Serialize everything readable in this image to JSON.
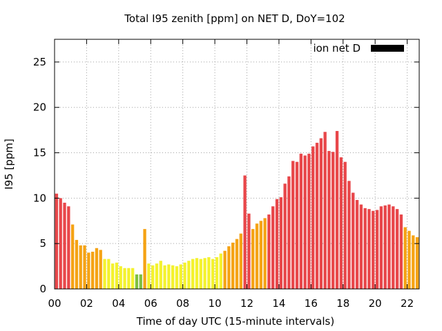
{
  "chart_data": {
    "type": "bar",
    "title": "Total I95 zenith [ppm] on NET D, DoY=102",
    "xlabel": "Time of day UTC (15-minute intervals)",
    "ylabel": "I95 [ppm]",
    "xlim": [
      0,
      22.75
    ],
    "ylim": [
      0,
      27.5
    ],
    "x_ticks": [
      {
        "value": 0,
        "label": "00"
      },
      {
        "value": 2,
        "label": "02"
      },
      {
        "value": 4,
        "label": "04"
      },
      {
        "value": 6,
        "label": "06"
      },
      {
        "value": 8,
        "label": "08"
      },
      {
        "value": 10,
        "label": "10"
      },
      {
        "value": 12,
        "label": "12"
      },
      {
        "value": 14,
        "label": "14"
      },
      {
        "value": 16,
        "label": "16"
      },
      {
        "value": 18,
        "label": "18"
      },
      {
        "value": 20,
        "label": "20"
      },
      {
        "value": 22,
        "label": "22"
      }
    ],
    "y_ticks": [
      {
        "value": 0,
        "label": "0"
      },
      {
        "value": 5,
        "label": "5"
      },
      {
        "value": 10,
        "label": "10"
      },
      {
        "value": 15,
        "label": "15"
      },
      {
        "value": 20,
        "label": "20"
      },
      {
        "value": 25,
        "label": "25"
      }
    ],
    "grid": true,
    "legend": {
      "label": "ion net D",
      "color": "#000000",
      "position": "top-right"
    },
    "interval_hours": 0.25,
    "x_start": 0,
    "colors": {
      "red": "#e8474a",
      "orange": "#f5a315",
      "yellow": "#f4f22f",
      "green": "#7fbf3f"
    },
    "bars": [
      {
        "value": 10.5,
        "color": "red"
      },
      {
        "value": 10.0,
        "color": "red"
      },
      {
        "value": 9.5,
        "color": "red"
      },
      {
        "value": 9.1,
        "color": "red"
      },
      {
        "value": 7.1,
        "color": "orange"
      },
      {
        "value": 5.4,
        "color": "orange"
      },
      {
        "value": 4.8,
        "color": "orange"
      },
      {
        "value": 4.8,
        "color": "orange"
      },
      {
        "value": 4.0,
        "color": "orange"
      },
      {
        "value": 4.1,
        "color": "orange"
      },
      {
        "value": 4.5,
        "color": "orange"
      },
      {
        "value": 4.3,
        "color": "orange"
      },
      {
        "value": 3.3,
        "color": "yellow"
      },
      {
        "value": 3.3,
        "color": "yellow"
      },
      {
        "value": 2.8,
        "color": "yellow"
      },
      {
        "value": 2.9,
        "color": "yellow"
      },
      {
        "value": 2.5,
        "color": "yellow"
      },
      {
        "value": 2.3,
        "color": "yellow"
      },
      {
        "value": 2.3,
        "color": "yellow"
      },
      {
        "value": 2.3,
        "color": "yellow"
      },
      {
        "value": 1.6,
        "color": "green"
      },
      {
        "value": 1.6,
        "color": "green"
      },
      {
        "value": 6.6,
        "color": "orange"
      },
      {
        "value": 2.8,
        "color": "yellow"
      },
      {
        "value": 2.6,
        "color": "yellow"
      },
      {
        "value": 2.8,
        "color": "yellow"
      },
      {
        "value": 3.1,
        "color": "yellow"
      },
      {
        "value": 2.6,
        "color": "yellow"
      },
      {
        "value": 2.7,
        "color": "yellow"
      },
      {
        "value": 2.6,
        "color": "yellow"
      },
      {
        "value": 2.5,
        "color": "yellow"
      },
      {
        "value": 2.7,
        "color": "yellow"
      },
      {
        "value": 2.9,
        "color": "yellow"
      },
      {
        "value": 3.1,
        "color": "yellow"
      },
      {
        "value": 3.3,
        "color": "yellow"
      },
      {
        "value": 3.4,
        "color": "yellow"
      },
      {
        "value": 3.3,
        "color": "yellow"
      },
      {
        "value": 3.4,
        "color": "yellow"
      },
      {
        "value": 3.5,
        "color": "yellow"
      },
      {
        "value": 3.3,
        "color": "yellow"
      },
      {
        "value": 3.5,
        "color": "yellow"
      },
      {
        "value": 3.9,
        "color": "yellow"
      },
      {
        "value": 4.2,
        "color": "orange"
      },
      {
        "value": 4.7,
        "color": "orange"
      },
      {
        "value": 5.1,
        "color": "orange"
      },
      {
        "value": 5.5,
        "color": "orange"
      },
      {
        "value": 6.1,
        "color": "orange"
      },
      {
        "value": 12.5,
        "color": "red"
      },
      {
        "value": 8.3,
        "color": "red"
      },
      {
        "value": 6.6,
        "color": "orange"
      },
      {
        "value": 7.2,
        "color": "orange"
      },
      {
        "value": 7.5,
        "color": "orange"
      },
      {
        "value": 7.8,
        "color": "orange"
      },
      {
        "value": 8.2,
        "color": "red"
      },
      {
        "value": 9.1,
        "color": "red"
      },
      {
        "value": 9.9,
        "color": "red"
      },
      {
        "value": 10.1,
        "color": "red"
      },
      {
        "value": 11.6,
        "color": "red"
      },
      {
        "value": 12.4,
        "color": "red"
      },
      {
        "value": 14.1,
        "color": "red"
      },
      {
        "value": 14.0,
        "color": "red"
      },
      {
        "value": 14.9,
        "color": "red"
      },
      {
        "value": 14.7,
        "color": "red"
      },
      {
        "value": 14.9,
        "color": "red"
      },
      {
        "value": 15.7,
        "color": "red"
      },
      {
        "value": 16.1,
        "color": "red"
      },
      {
        "value": 16.6,
        "color": "red"
      },
      {
        "value": 17.3,
        "color": "red"
      },
      {
        "value": 15.2,
        "color": "red"
      },
      {
        "value": 15.1,
        "color": "red"
      },
      {
        "value": 17.4,
        "color": "red"
      },
      {
        "value": 14.5,
        "color": "red"
      },
      {
        "value": 14.0,
        "color": "red"
      },
      {
        "value": 11.9,
        "color": "red"
      },
      {
        "value": 10.6,
        "color": "red"
      },
      {
        "value": 9.8,
        "color": "red"
      },
      {
        "value": 9.3,
        "color": "red"
      },
      {
        "value": 8.9,
        "color": "red"
      },
      {
        "value": 8.8,
        "color": "red"
      },
      {
        "value": 8.6,
        "color": "red"
      },
      {
        "value": 8.7,
        "color": "red"
      },
      {
        "value": 9.1,
        "color": "red"
      },
      {
        "value": 9.2,
        "color": "red"
      },
      {
        "value": 9.3,
        "color": "red"
      },
      {
        "value": 9.1,
        "color": "red"
      },
      {
        "value": 8.8,
        "color": "red"
      },
      {
        "value": 8.2,
        "color": "red"
      },
      {
        "value": 6.8,
        "color": "orange"
      },
      {
        "value": 6.4,
        "color": "orange"
      },
      {
        "value": 5.9,
        "color": "orange"
      },
      {
        "value": 5.7,
        "color": "orange"
      }
    ]
  }
}
